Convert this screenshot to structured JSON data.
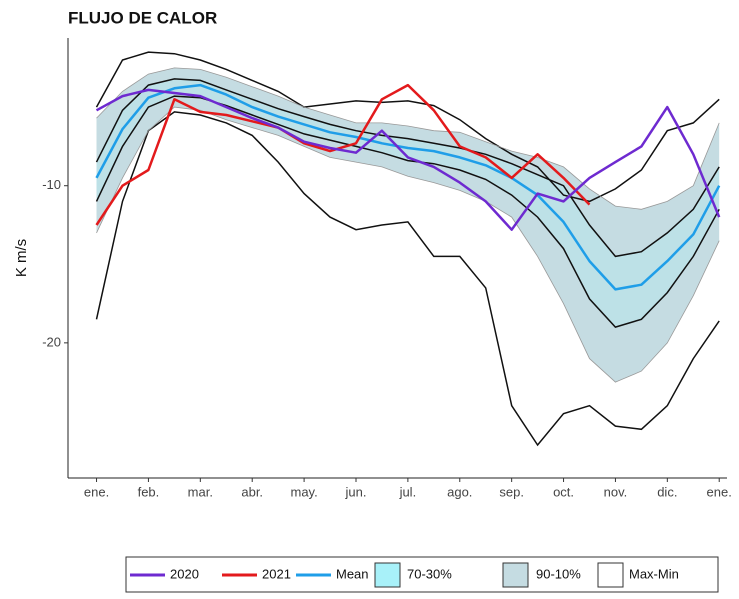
{
  "chart_data": {
    "type": "line",
    "title": "FLUJO DE CALOR",
    "ylabel": "K m/s",
    "x": [
      0,
      1,
      2,
      3,
      4,
      5,
      6,
      7,
      8,
      9,
      10,
      11,
      12,
      13,
      14,
      15,
      16,
      17,
      18,
      19,
      20,
      21,
      22,
      23,
      24
    ],
    "xlim": [
      -1.1,
      24.3
    ],
    "xticks": [
      {
        "value": 0,
        "label": "ene."
      },
      {
        "value": 2,
        "label": "feb."
      },
      {
        "value": 4,
        "label": "mar."
      },
      {
        "value": 6,
        "label": "abr."
      },
      {
        "value": 8,
        "label": "may."
      },
      {
        "value": 10,
        "label": "jun."
      },
      {
        "value": 12,
        "label": "jul."
      },
      {
        "value": 14,
        "label": "ago."
      },
      {
        "value": 16,
        "label": "sep."
      },
      {
        "value": 18,
        "label": "oct."
      },
      {
        "value": 20,
        "label": "nov."
      },
      {
        "value": 22,
        "label": "dic."
      },
      {
        "value": 24,
        "label": "ene."
      }
    ],
    "ylim": [
      -28.6,
      -0.6
    ],
    "yticks": [
      -10,
      -20
    ],
    "grid": false,
    "legend": "bottom",
    "bands": [
      {
        "name": "Max-Min",
        "color": "#ffffff",
        "upper": [
          -5.0,
          -2.0,
          -1.5,
          -1.6,
          -2.0,
          -2.6,
          -3.3,
          -4.0,
          -5.0,
          -4.8,
          -4.6,
          -4.7,
          -4.6,
          -4.9,
          -5.8,
          -7.0,
          -8.0,
          -8.8,
          -10.6,
          -11.0,
          -10.2,
          -9.0,
          -6.5,
          -6.0,
          -4.5
        ],
        "lower": [
          -18.5,
          -11.0,
          -6.5,
          -5.3,
          -5.5,
          -6.0,
          -6.8,
          -8.5,
          -10.5,
          -12.0,
          -12.8,
          -12.5,
          -12.3,
          -14.5,
          -14.5,
          -16.5,
          -24.0,
          -26.5,
          -24.5,
          -24.0,
          -25.3,
          -25.5,
          -24.0,
          -21.0,
          -18.6
        ]
      },
      {
        "name": "90-10%",
        "color": "#c5dce2",
        "upper": [
          -5.7,
          -4.0,
          -2.9,
          -2.5,
          -2.6,
          -3.1,
          -3.7,
          -4.3,
          -5.0,
          -5.5,
          -6.0,
          -6.0,
          -6.2,
          -6.5,
          -6.6,
          -7.2,
          -7.8,
          -8.2,
          -8.8,
          -10.2,
          -11.3,
          -11.5,
          -11.0,
          -10.0,
          -6.0
        ],
        "lower": [
          -13.0,
          -9.5,
          -6.5,
          -5.0,
          -5.2,
          -5.8,
          -6.3,
          -6.8,
          -7.5,
          -8.2,
          -8.5,
          -8.8,
          -9.4,
          -9.8,
          -10.3,
          -11.0,
          -12.0,
          -14.5,
          -17.5,
          -21.0,
          -22.5,
          -21.8,
          -20.0,
          -17.0,
          -13.5
        ]
      },
      {
        "name": "70-30%",
        "color": "#a8f1f9",
        "upper": [
          -8.5,
          -5.2,
          -3.6,
          -3.2,
          -3.3,
          -3.9,
          -4.5,
          -5.1,
          -5.6,
          -6.1,
          -6.5,
          -6.8,
          -7.0,
          -7.3,
          -7.6,
          -8.0,
          -8.6,
          -9.3,
          -10.0,
          -12.5,
          -14.5,
          -14.2,
          -13.0,
          -11.5,
          -8.8
        ],
        "lower": [
          -11.0,
          -7.5,
          -5.0,
          -4.3,
          -4.4,
          -4.9,
          -5.5,
          -6.1,
          -6.7,
          -7.1,
          -7.5,
          -7.9,
          -8.4,
          -8.6,
          -9.0,
          -9.6,
          -10.6,
          -12.0,
          -14.0,
          -17.2,
          -19.0,
          -18.5,
          -16.8,
          -14.5,
          -11.5
        ]
      }
    ],
    "series": [
      {
        "name": "Mean",
        "color": "#1f9ee8",
        "values": [
          -9.5,
          -6.4,
          -4.4,
          -3.8,
          -3.6,
          -4.2,
          -5.0,
          -5.6,
          -6.1,
          -6.6,
          -6.9,
          -7.3,
          -7.6,
          -7.8,
          -8.2,
          -8.7,
          -9.5,
          -10.6,
          -12.3,
          -14.8,
          -16.6,
          -16.3,
          -14.8,
          -13.1,
          -10.0
        ]
      },
      {
        "name": "2021",
        "color": "#e31a1c",
        "values": [
          -12.5,
          -10.0,
          -9.0,
          -4.5,
          -5.3,
          -5.5,
          -5.9,
          -6.3,
          -7.3,
          -7.8,
          -7.3,
          -4.5,
          -3.6,
          -5.2,
          -7.5,
          -8.2,
          -9.5,
          -8.0,
          -9.5,
          -11.2,
          null,
          null,
          null,
          null,
          null
        ]
      },
      {
        "name": "2020",
        "color": "#6e2ad0",
        "values": [
          -5.2,
          -4.3,
          -3.9,
          -4.1,
          -4.3,
          -5.0,
          -5.7,
          -6.3,
          -7.2,
          -7.6,
          -7.9,
          -6.5,
          -8.2,
          -8.8,
          -9.8,
          -11.0,
          -12.8,
          -10.5,
          -11.0,
          -9.5,
          -8.5,
          -7.5,
          -5.0,
          -8.0,
          -12.0
        ]
      }
    ]
  }
}
